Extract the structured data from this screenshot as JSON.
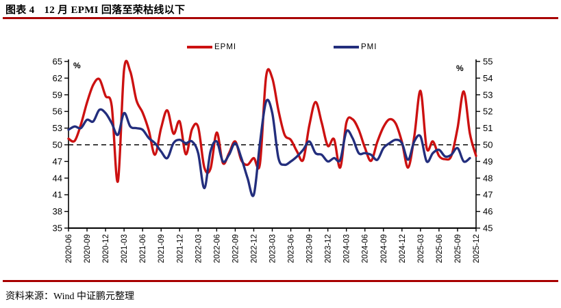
{
  "header": {
    "label": "图表 4",
    "title": "12 月 EPMI 回落至荣枯线以下"
  },
  "footer": {
    "source": "资料来源：Wind 中证鹏元整理"
  },
  "colors": {
    "rule": "#A80000",
    "epmi": "#CC1111",
    "pmi": "#232E7D",
    "reference_line": "#000000",
    "axis": "#000000"
  },
  "chart_data": {
    "type": "line",
    "title": "12 月 EPMI 回落至荣枯线以下",
    "grid": false,
    "legend_position": "top-center",
    "left_axis": {
      "label": "%",
      "min": 35,
      "max": 65,
      "step": 3,
      "ticks": [
        65,
        62,
        59,
        56,
        53,
        50,
        47,
        44,
        41,
        38,
        35
      ]
    },
    "right_axis": {
      "label": "%",
      "min": 45,
      "max": 55,
      "step": 1,
      "ticks": [
        55,
        54,
        53,
        52,
        51,
        50,
        49,
        48,
        47,
        46,
        45
      ]
    },
    "reference_line": {
      "value": 50,
      "axis": "left",
      "style": "dashed"
    },
    "x_start": "2020-06",
    "x_end": "2025-12",
    "n_months": 67,
    "x_tick_labels": [
      "2020-06",
      "2020-09",
      "2020-12",
      "2021-03",
      "2021-06",
      "2021-09",
      "2021-12",
      "2022-03",
      "2022-06",
      "2022-09",
      "2022-12",
      "2023-03",
      "2023-06",
      "2023-09",
      "2023-12",
      "2024-03",
      "2024-06",
      "2024-09",
      "2024-12",
      "2025-03",
      "2025-06",
      "2025-09",
      "2025-12"
    ],
    "x_tick_every_months": 3,
    "series": [
      {
        "name": "EPMI",
        "axis": "left",
        "color": "#CC1111",
        "values": [
          51.1,
          50.7,
          53.6,
          57.6,
          60.8,
          61.8,
          58.8,
          57.0,
          43.4,
          63.5,
          63.2,
          58.0,
          55.8,
          52.6,
          48.2,
          53.0,
          56.2,
          52.0,
          54.2,
          48.3,
          52.8,
          53.2,
          45.9,
          45.7,
          52.2,
          46.7,
          48.5,
          50.6,
          47.2,
          46.4,
          47.6,
          46.6,
          62.3,
          62.0,
          56.2,
          51.8,
          50.9,
          48.8,
          47.3,
          53.5,
          57.7,
          54.0,
          49.8,
          51.0,
          45.9,
          54.0,
          54.6,
          52.7,
          49.5,
          47.1,
          50.5,
          53.2,
          54.6,
          53.8,
          50.5,
          45.9,
          51.5,
          59.7,
          49.4,
          50.6,
          48.0,
          47.4,
          48.0,
          53.0,
          59.6,
          52.0,
          48.0
        ]
      },
      {
        "name": "PMI",
        "axis": "right",
        "color": "#232E7D",
        "values": [
          50.9,
          51.1,
          51.0,
          51.5,
          51.4,
          52.1,
          51.9,
          51.3,
          50.6,
          51.9,
          51.1,
          51.0,
          50.9,
          50.4,
          50.1,
          49.6,
          49.2,
          50.1,
          50.3,
          50.1,
          50.2,
          49.5,
          47.4,
          49.6,
          50.2,
          49.0,
          49.4,
          50.1,
          49.2,
          48.0,
          47.0,
          50.1,
          52.6,
          51.9,
          49.2,
          48.8,
          49.0,
          49.3,
          49.7,
          50.2,
          49.5,
          49.4,
          49.0,
          49.2,
          49.1,
          50.8,
          50.4,
          49.5,
          49.5,
          49.4,
          49.1,
          49.8,
          50.1,
          50.3,
          50.1,
          49.1,
          50.2,
          50.5,
          49.0,
          49.5,
          49.7,
          49.3,
          49.4,
          49.8,
          49.0,
          49.2
        ]
      }
    ]
  }
}
